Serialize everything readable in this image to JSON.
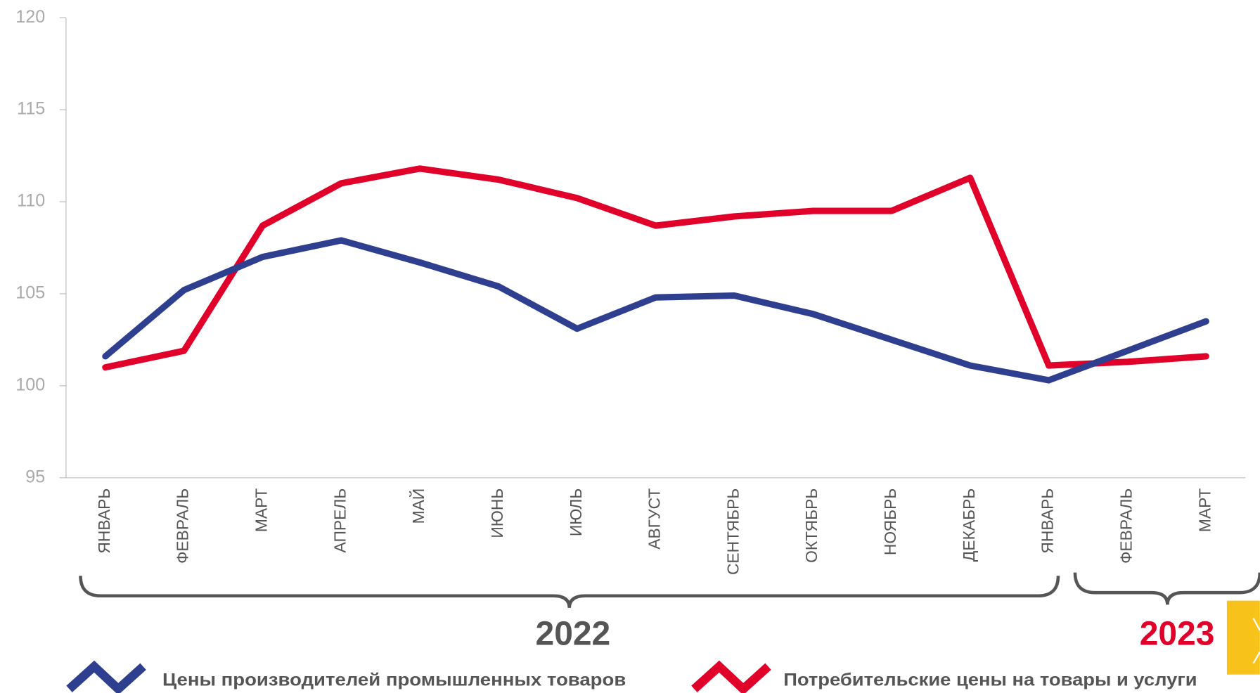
{
  "chart_data": {
    "type": "line",
    "categories": [
      "ЯНВАРЬ",
      "ФЕВРАЛЬ",
      "МАРТ",
      "АПРЕЛЬ",
      "МАЙ",
      "ИЮНЬ",
      "ИЮЛЬ",
      "АВГУСТ",
      "СЕНТЯБРЬ",
      "ОКТЯБРЬ",
      "НОЯБРЬ",
      "ДЕКАБРЬ",
      "ЯНВАРЬ",
      "ФЕВРАЛЬ",
      "МАРТ"
    ],
    "series": [
      {
        "name": "Цены производителей промышленных товаров",
        "color": "#2e3f8f",
        "values": [
          101.6,
          105.2,
          107.0,
          107.9,
          106.7,
          105.4,
          103.1,
          104.8,
          104.9,
          103.9,
          102.5,
          101.1,
          100.3,
          101.9,
          103.5
        ]
      },
      {
        "name": "Потребительские цены на товары и услуги",
        "color": "#e0002a",
        "values": [
          101.0,
          101.9,
          108.7,
          111.0,
          111.8,
          111.2,
          110.2,
          108.7,
          109.2,
          109.5,
          109.5,
          111.3,
          101.1,
          101.3,
          101.6
        ]
      }
    ],
    "ylim": [
      95,
      120
    ],
    "yticks": [
      95,
      100,
      105,
      110,
      115,
      120
    ],
    "year_groups": [
      {
        "label": "2022",
        "color": "#555555"
      },
      {
        "label": "2023",
        "color": "#e0002a"
      }
    ]
  }
}
